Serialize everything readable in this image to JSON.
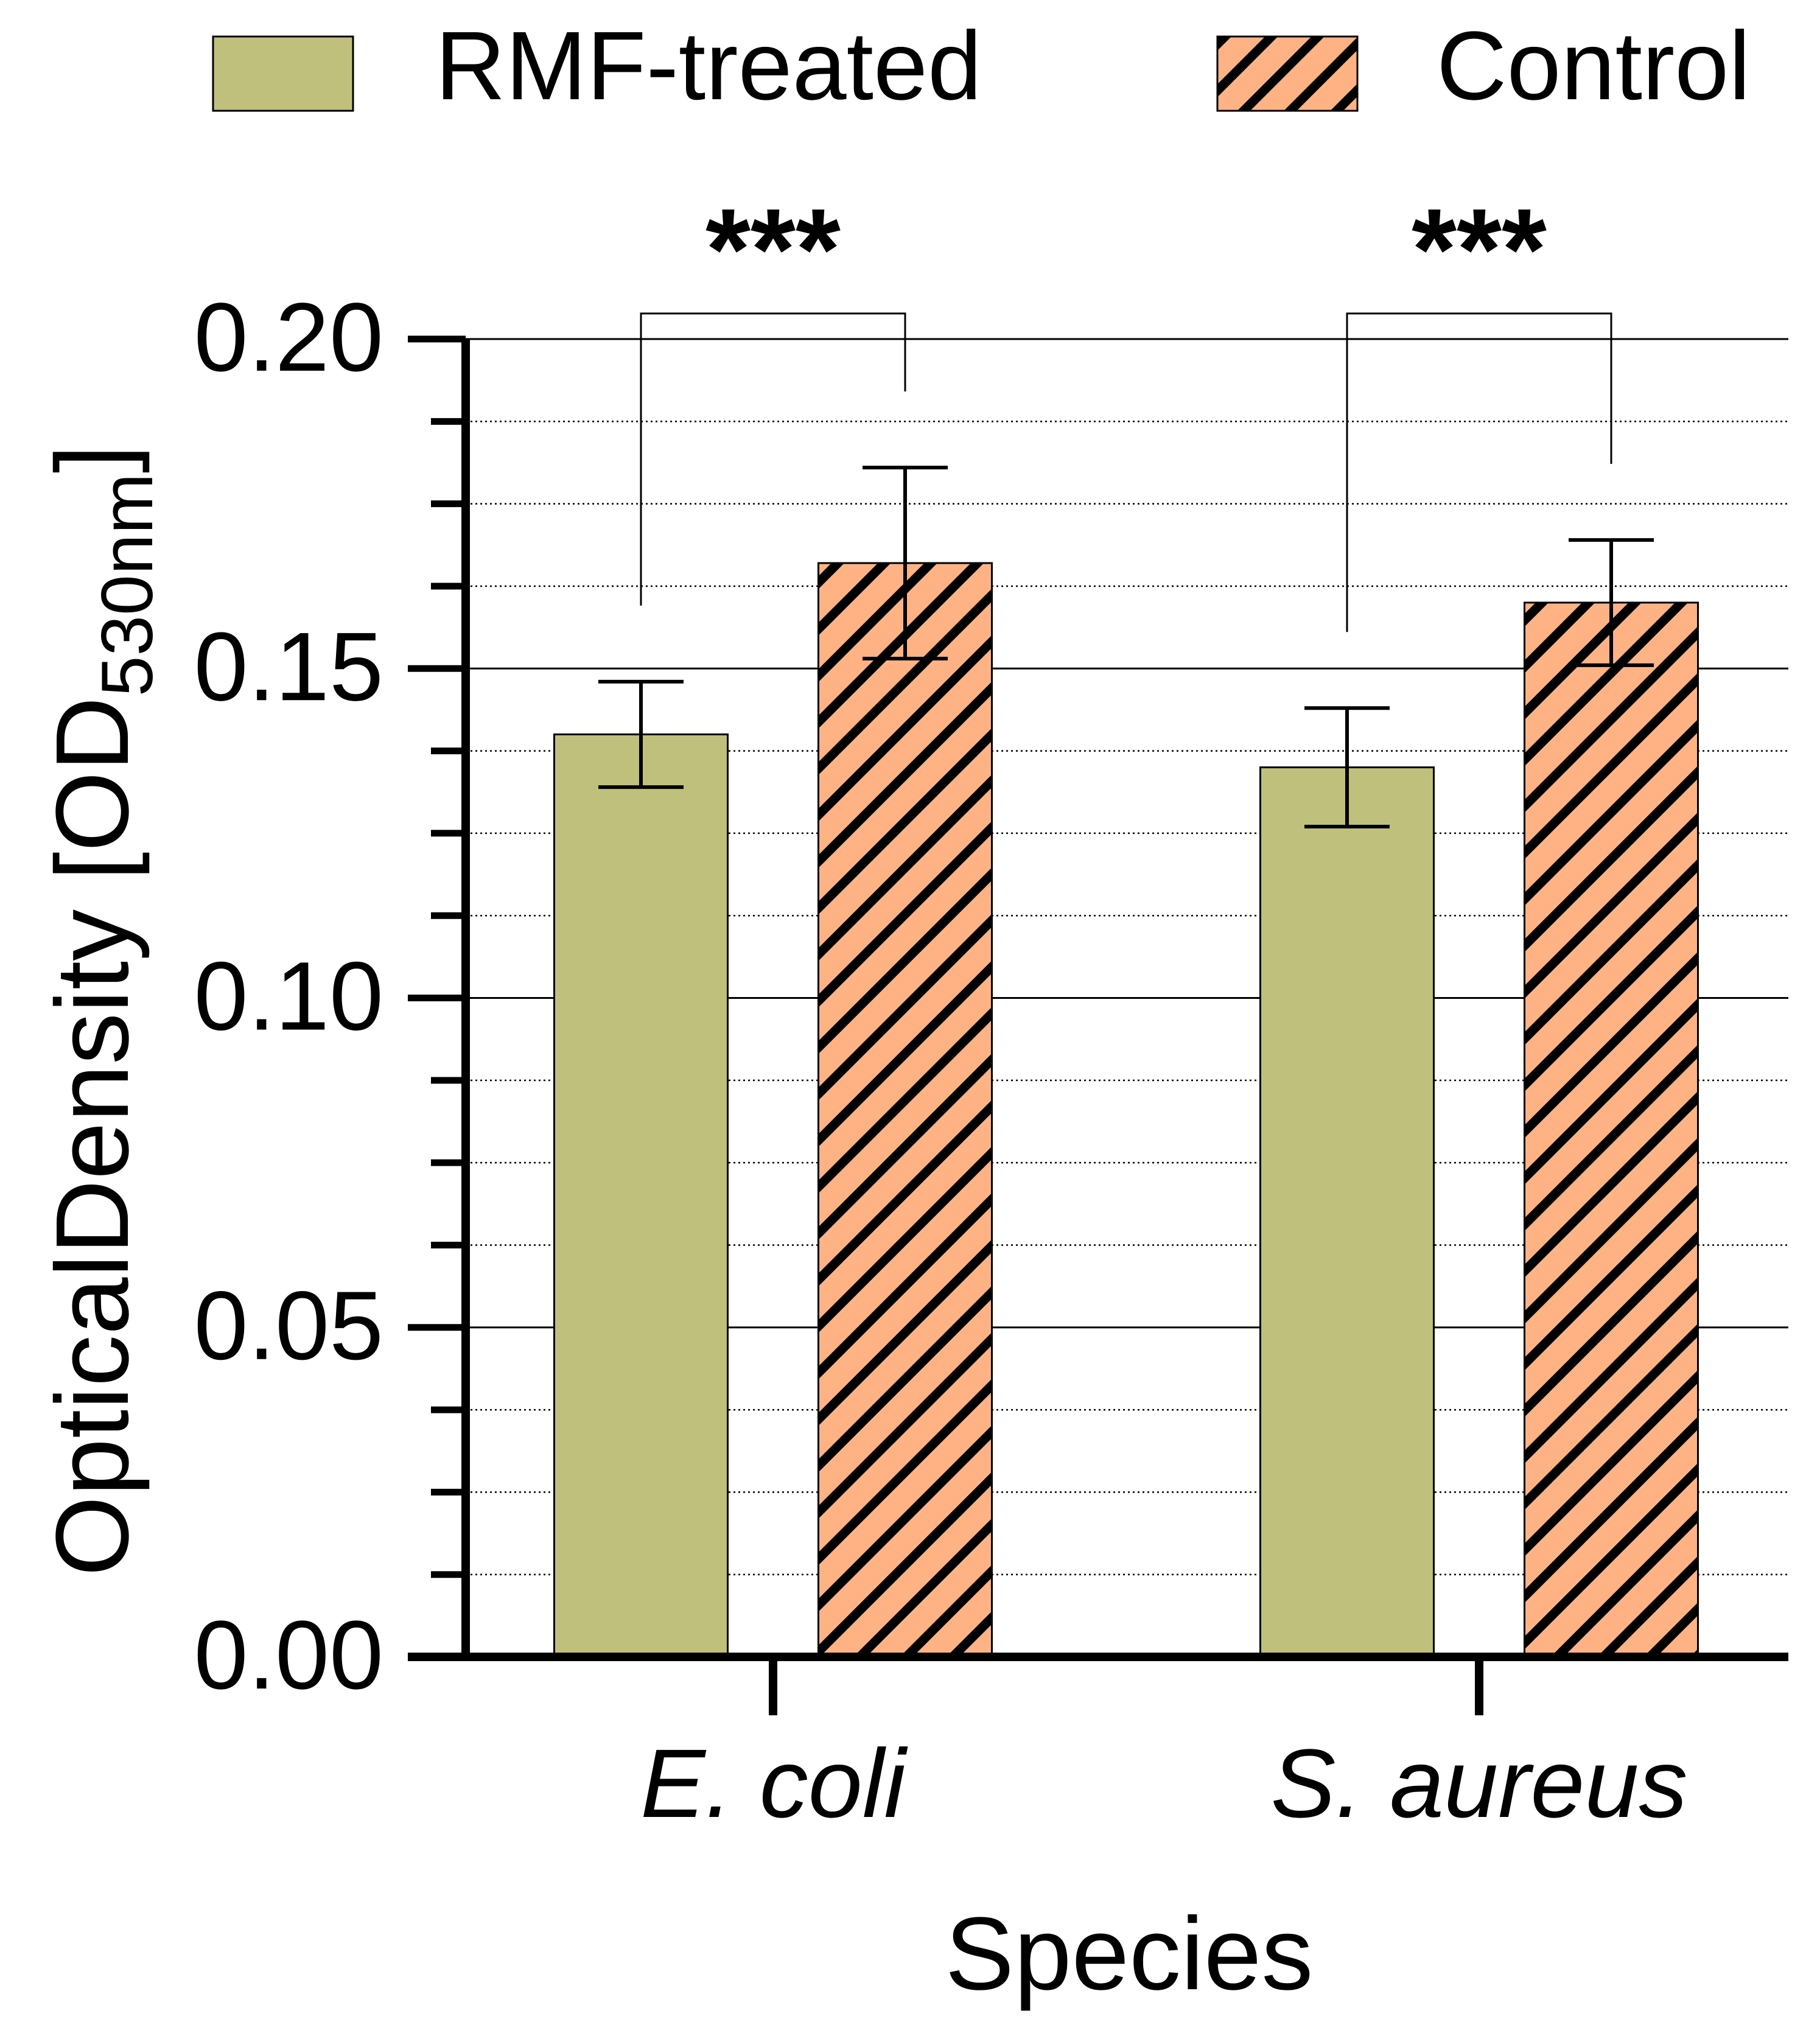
{
  "chart_data": {
    "type": "bar",
    "title": "",
    "xlabel": "Species",
    "ylabel": {
      "main": "OpticalDensity [OD",
      "subscript": "530nm",
      "close": "]"
    },
    "ylim": [
      0,
      0.2
    ],
    "y_major_ticks": [
      "0.00",
      "0.05",
      "0.10",
      "0.15",
      "0.20"
    ],
    "y_minor_step": 0.0125,
    "grid": true,
    "categories": [
      "E. coli",
      "S. aureus"
    ],
    "series": [
      {
        "name": "RMF-treated",
        "values": [
          0.14,
          0.135
        ],
        "errors": [
          0.008,
          0.009
        ],
        "color": "#BFC07C",
        "pattern": "solid"
      },
      {
        "name": "Control",
        "values": [
          0.166,
          0.16
        ],
        "errors": [
          0.0145,
          0.0095
        ],
        "color": "#FFB385",
        "pattern": "diagonal-hatch"
      }
    ],
    "significance": [
      {
        "category": "E. coli",
        "label": "***"
      },
      {
        "category": "S. aureus",
        "label": "***"
      }
    ],
    "legend_position": "top"
  }
}
